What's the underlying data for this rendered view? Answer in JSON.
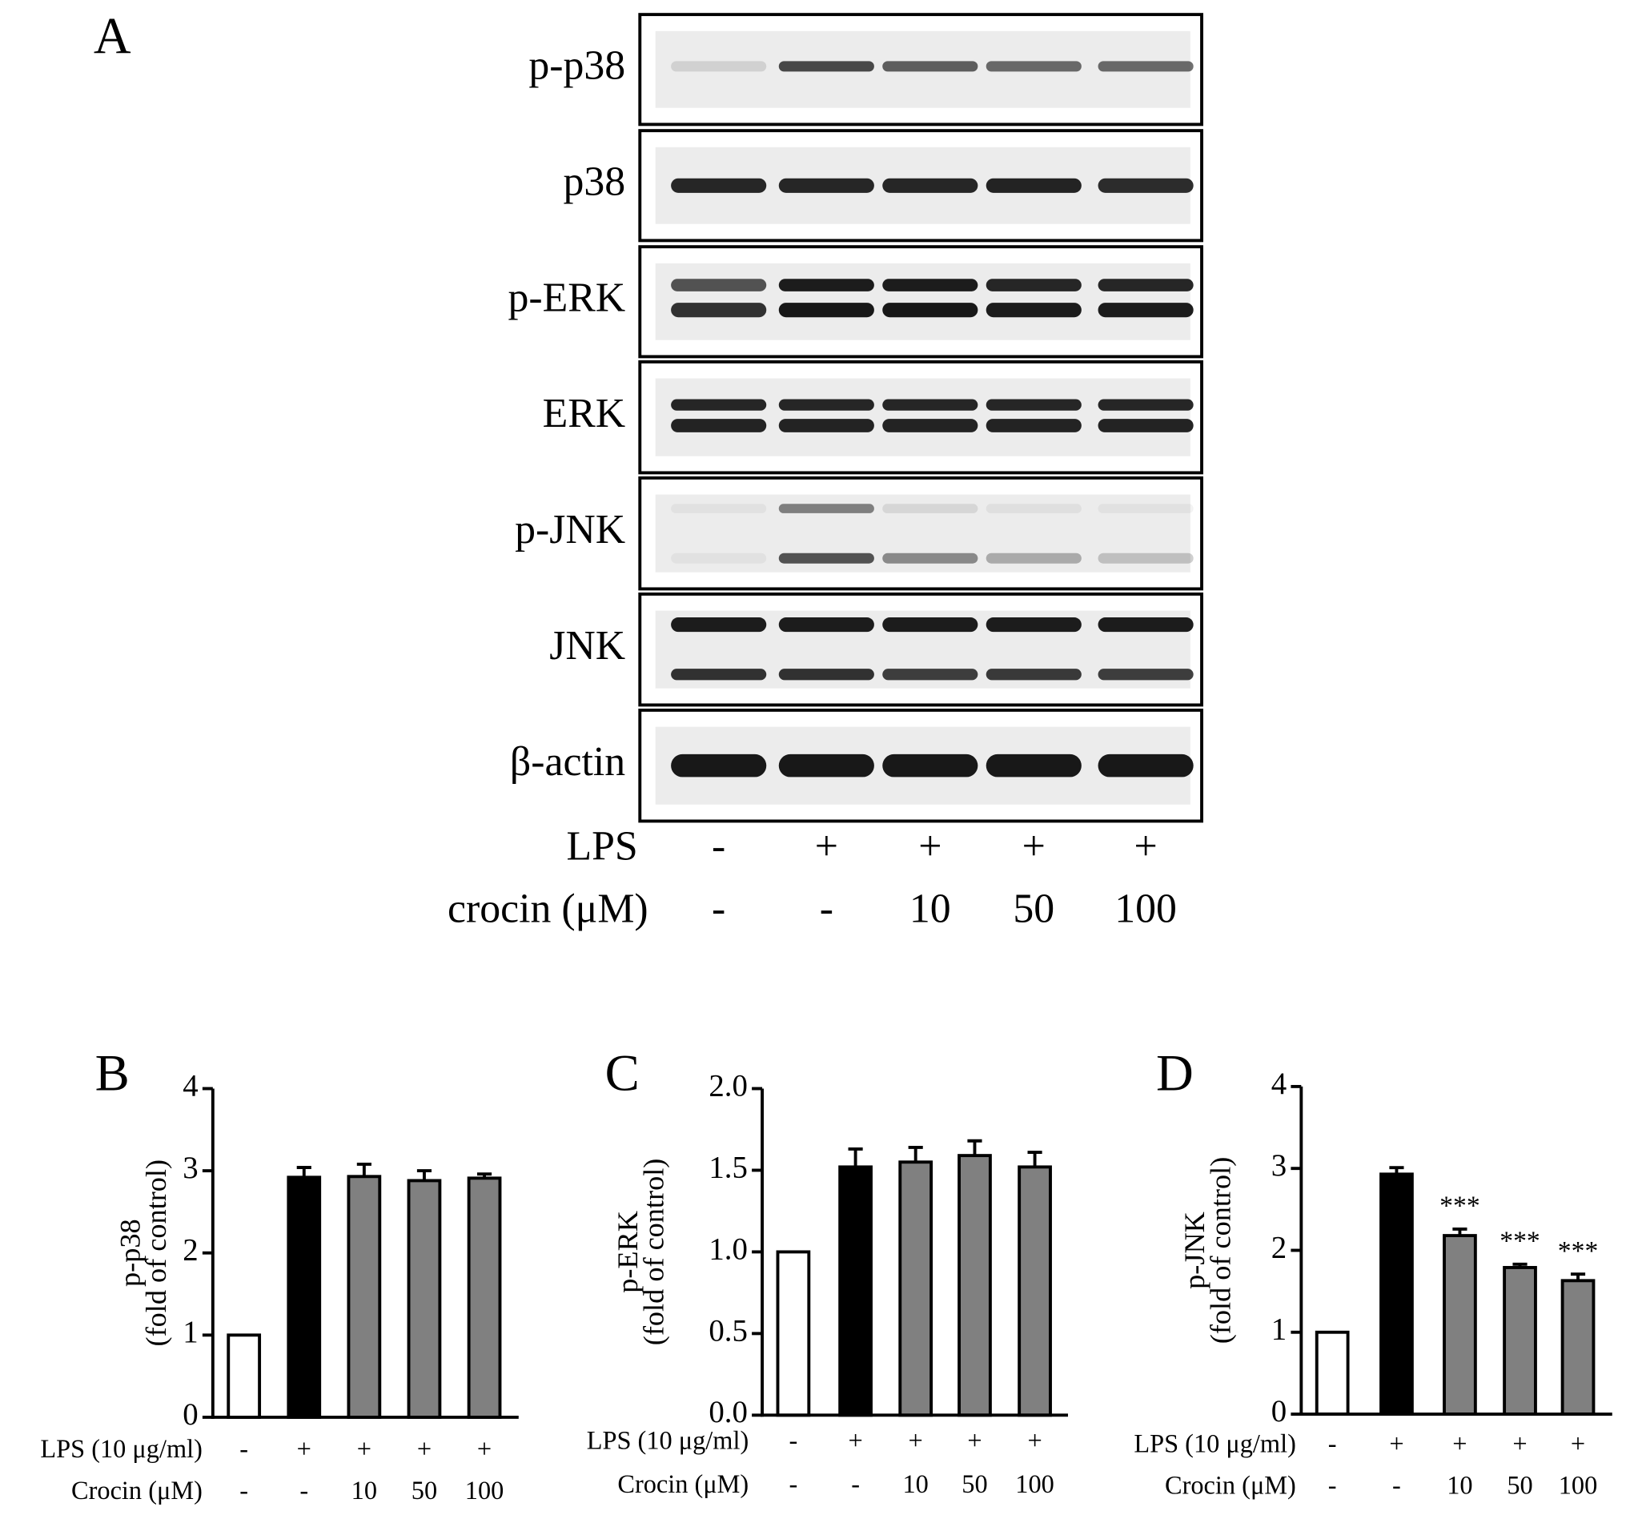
{
  "blot": {
    "panel_label": "A",
    "rows": [
      "p-p38",
      "p38",
      "p-ERK",
      "ERK",
      "p-JNK",
      "JNK",
      "β-actin"
    ],
    "conditions": [
      {
        "name": "LPS",
        "labels": [
          "-",
          "+",
          "+",
          "+",
          "+"
        ]
      },
      {
        "name": "crocin (μM)",
        "labels": [
          "-",
          "-",
          "10",
          "50",
          "100"
        ]
      }
    ]
  },
  "chart_data": [
    {
      "type": "bar",
      "panel_label": "B",
      "ylabel": [
        "p-p38",
        "(fold of control)"
      ],
      "conditions": [
        {
          "name": "LPS (10 μg/ml)",
          "labels": [
            "-",
            "+",
            "+",
            "+",
            "+"
          ]
        },
        {
          "name": "Crocin (μM)",
          "labels": [
            "-",
            "-",
            "10",
            "50",
            "100"
          ]
        }
      ],
      "values": [
        1,
        2.92,
        2.93,
        2.88,
        2.91
      ],
      "errors": [
        0,
        0.12,
        0.15,
        0.12,
        0.05
      ],
      "colors": [
        "#ffffff",
        "#000000",
        "#808080",
        "#808080",
        "#808080"
      ],
      "ylim": [
        0,
        4
      ],
      "yticks": [
        0,
        1,
        2,
        3,
        4
      ]
    },
    {
      "type": "bar",
      "panel_label": "C",
      "ylabel": [
        "p-ERK",
        "(fold of control)"
      ],
      "conditions": [
        {
          "name": "LPS (10 μg/ml)",
          "labels": [
            "-",
            "+",
            "+",
            "+",
            "+"
          ]
        },
        {
          "name": "Crocin (μM)",
          "labels": [
            "-",
            "-",
            "10",
            "50",
            "100"
          ]
        }
      ],
      "values": [
        1.0,
        1.52,
        1.55,
        1.59,
        1.52
      ],
      "errors": [
        0,
        0.11,
        0.09,
        0.09,
        0.09
      ],
      "colors": [
        "#ffffff",
        "#000000",
        "#808080",
        "#808080",
        "#808080"
      ],
      "ylim": [
        0,
        2
      ],
      "yticks": [
        {
          "value": 0,
          "label": "0.0"
        },
        0.5,
        {
          "value": 1,
          "label": "1.0"
        },
        1.5,
        {
          "value": 2,
          "label": "2.0"
        }
      ]
    },
    {
      "type": "bar",
      "panel_label": "D",
      "ylabel": [
        "p-JNK",
        "(fold of control)"
      ],
      "conditions": [
        {
          "name": "LPS (10 μg/ml)",
          "labels": [
            "-",
            "+",
            "+",
            "+",
            "+"
          ]
        },
        {
          "name": "Crocin (μM)",
          "labels": [
            "-",
            "-",
            "10",
            "50",
            "100"
          ]
        }
      ],
      "values": [
        1,
        2.93,
        2.18,
        1.79,
        1.63
      ],
      "errors": [
        0,
        0.08,
        0.08,
        0.04,
        0.08
      ],
      "colors": [
        "#ffffff",
        "#000000",
        "#808080",
        "#808080",
        "#808080"
      ],
      "significance": [
        null,
        null,
        "***",
        "***",
        "***"
      ],
      "ylim": [
        0,
        4
      ],
      "yticks": [
        0,
        1,
        2,
        3,
        4
      ]
    }
  ]
}
